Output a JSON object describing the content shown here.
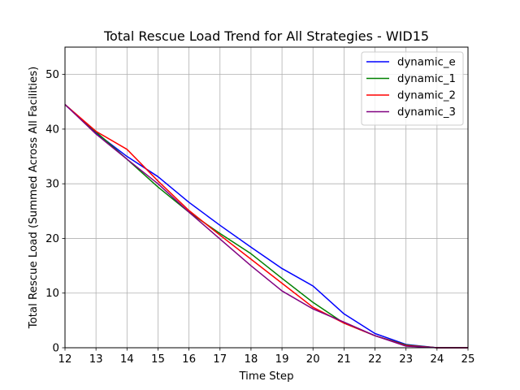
{
  "chart_data": {
    "type": "line",
    "title": "Total Rescue Load Trend for All Strategies - WID15",
    "xlabel": "Time Step",
    "ylabel": "Total Rescue Load (Summed Across All Facilities)",
    "xlim": [
      12,
      25
    ],
    "ylim": [
      0,
      55
    ],
    "xticks": [
      12,
      13,
      14,
      15,
      16,
      17,
      18,
      19,
      20,
      21,
      22,
      23,
      24,
      25
    ],
    "yticks": [
      0,
      10,
      20,
      30,
      40,
      50
    ],
    "grid": true,
    "legend_position": "upper-right",
    "x": [
      12,
      13,
      14,
      15,
      16,
      17,
      18,
      19,
      20,
      21,
      22,
      23,
      24,
      25
    ],
    "series": [
      {
        "name": "dynamic_e",
        "color": "#0000ff",
        "values": [
          44.5,
          39.3,
          35.0,
          31.3,
          26.6,
          22.4,
          18.4,
          14.5,
          11.3,
          6.2,
          2.6,
          0.6,
          0.0,
          0.0
        ]
      },
      {
        "name": "dynamic_1",
        "color": "#008000",
        "values": [
          44.5,
          39.5,
          34.5,
          29.4,
          24.8,
          20.9,
          17.2,
          12.7,
          8.3,
          4.5,
          2.2,
          0.5,
          0.0,
          0.0
        ]
      },
      {
        "name": "dynamic_2",
        "color": "#ff0000",
        "values": [
          44.5,
          39.6,
          36.3,
          30.5,
          25.1,
          20.6,
          16.2,
          11.8,
          7.4,
          4.5,
          2.2,
          0.4,
          0.0,
          0.0
        ]
      },
      {
        "name": "dynamic_3",
        "color": "#800080",
        "values": [
          44.5,
          39.1,
          34.5,
          30.0,
          24.8,
          19.9,
          15.0,
          10.4,
          7.1,
          4.7,
          2.2,
          0.3,
          0.0,
          0.0
        ]
      }
    ]
  }
}
